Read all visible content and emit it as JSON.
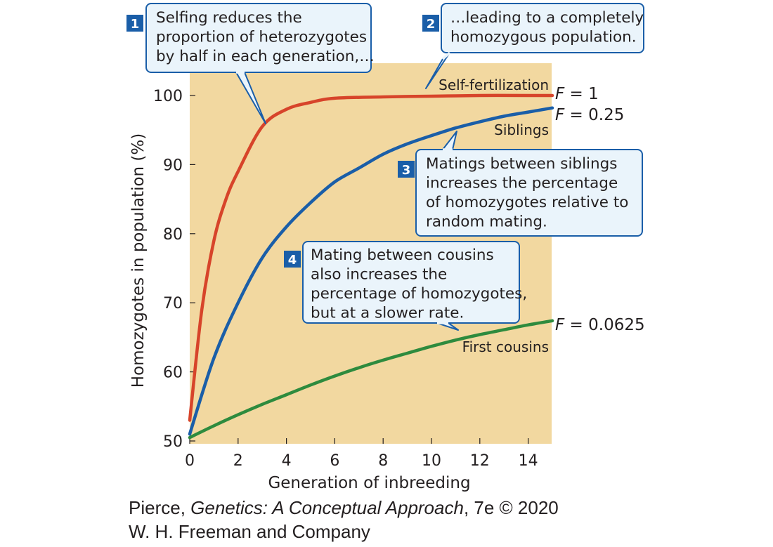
{
  "chart_data": {
    "type": "line",
    "xlabel": "Generation of inbreeding",
    "ylabel": "Homozygotes in population (%)",
    "xlim": [
      0,
      15
    ],
    "ylim": [
      50,
      100
    ],
    "xticks": [
      0,
      2,
      4,
      6,
      8,
      10,
      12,
      14
    ],
    "yticks": [
      50,
      60,
      70,
      80,
      90,
      100
    ],
    "grid": false,
    "background": "#f2d8a0",
    "series": [
      {
        "name": "Self-fertilization",
        "f_label": "F = 1",
        "color": "#d7442a",
        "x": [
          0,
          0.5,
          1,
          1.5,
          2,
          3,
          4,
          5,
          6,
          8,
          10,
          12,
          14,
          15
        ],
        "y": [
          53,
          69,
          79,
          85,
          89,
          95.5,
          98,
          99,
          99.6,
          99.8,
          99.9,
          100,
          100,
          100
        ]
      },
      {
        "name": "Siblings",
        "f_label": "F = 0.25",
        "color": "#1a5ea8",
        "x": [
          0,
          1,
          2,
          3,
          4,
          5,
          6,
          7,
          8,
          9,
          10,
          11,
          12,
          13,
          14,
          15
        ],
        "y": [
          51,
          62,
          70,
          76.5,
          81,
          84.5,
          87.5,
          89.5,
          91.5,
          93,
          94.2,
          95.3,
          96.2,
          97,
          97.6,
          98.2
        ]
      },
      {
        "name": "First cousins",
        "f_label": "F = 0.0625",
        "color": "#2e8b3e",
        "x": [
          0,
          1,
          2,
          3,
          4,
          5,
          6,
          7,
          8,
          9,
          10,
          11,
          12,
          13,
          14,
          15
        ],
        "y": [
          50.5,
          52.2,
          53.8,
          55.3,
          56.7,
          58.1,
          59.4,
          60.6,
          61.7,
          62.7,
          63.7,
          64.6,
          65.4,
          66.1,
          66.8,
          67.4
        ]
      }
    ],
    "annotations": [
      {
        "number": "1",
        "lines": [
          "Selfing reduces the",
          "proportion of heterozygotes",
          "by half in each generation,…"
        ]
      },
      {
        "number": "2",
        "lines": [
          "…leading to a completely",
          "homozygous population."
        ]
      },
      {
        "number": "3",
        "lines": [
          "Matings between siblings",
          "increases the percentage",
          "of homozygotes relative to",
          "random mating."
        ]
      },
      {
        "number": "4",
        "lines": [
          "Mating between cousins",
          "also increases the",
          "percentage of homozygotes,",
          "but at a slower rate."
        ]
      }
    ],
    "colors": {
      "badge": "#1a5ea8",
      "callout_fill": "#eaf4fb",
      "callout_stroke": "#1a5ea8"
    }
  },
  "credit": {
    "author": "Pierce, ",
    "title": "Genetics: A Conceptual Approach",
    "edition": ", 7e © 2020",
    "publisher": "W. H. Freeman and Company"
  }
}
